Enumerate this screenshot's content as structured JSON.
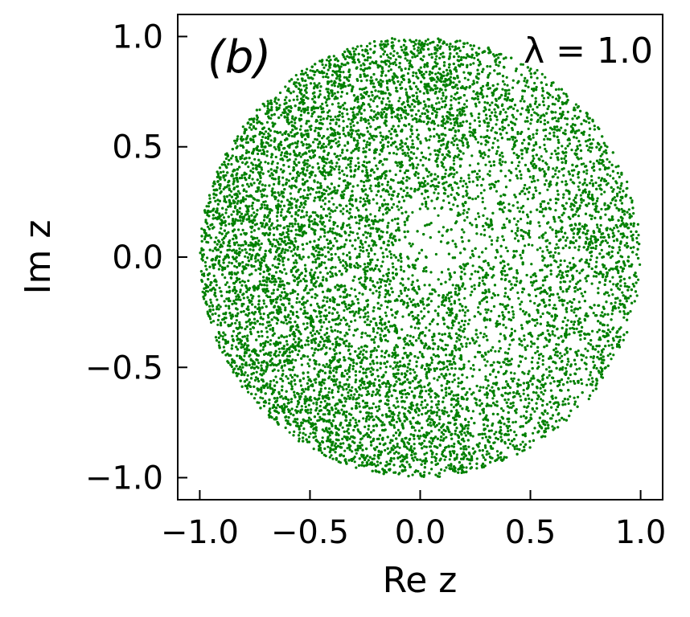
{
  "chart_data": {
    "type": "scatter",
    "panel_label": "(b)",
    "annotation": "λ = 1.0",
    "xlabel": "Re z",
    "ylabel": "Im z",
    "xlim": [
      -1.1,
      1.1
    ],
    "ylim": [
      -1.1,
      1.1
    ],
    "xticks": [
      -1.0,
      -0.5,
      0.0,
      0.5,
      1.0
    ],
    "yticks": [
      -1.0,
      -0.5,
      0.0,
      0.5,
      1.0
    ],
    "xtick_labels": [
      "−1.0",
      "−0.5",
      "0.0",
      "0.5",
      "1.0"
    ],
    "ytick_labels": [
      "−1.0",
      "−0.5",
      "0.0",
      "0.5",
      "1.0"
    ],
    "grid": false,
    "point_color": "#008000",
    "series": [
      {
        "description_points": "eigenvalues filling the unit disk, densest near the rim on the left, sparse hole right of centre near (0.05, 0.05)",
        "support": "unit disk |z| ≤ 1",
        "hole_center": [
          0.05,
          0.05
        ],
        "hole_radius": 0.3,
        "approx_count": 20000
      }
    ]
  }
}
